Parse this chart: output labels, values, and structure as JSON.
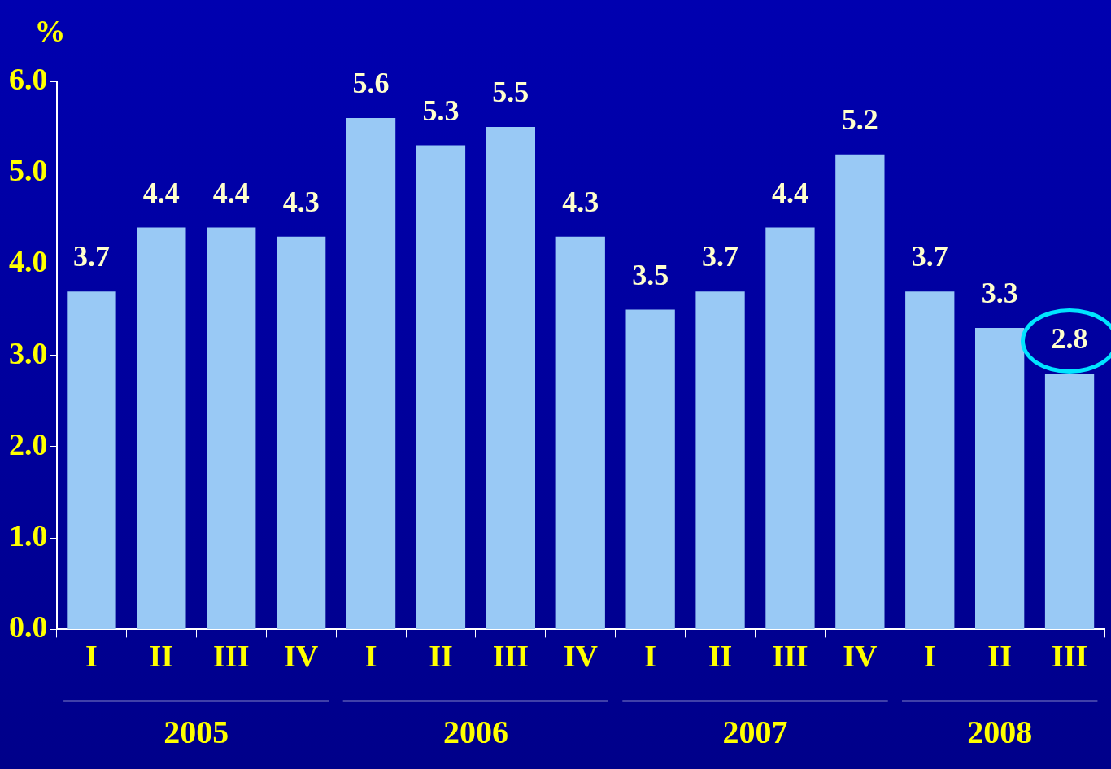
{
  "chart_data": {
    "type": "bar",
    "ylabel": "%",
    "categories": [
      "I",
      "II",
      "III",
      "IV",
      "I",
      "II",
      "III",
      "IV",
      "I",
      "II",
      "III",
      "IV",
      "I",
      "II",
      "III"
    ],
    "values": [
      3.7,
      4.4,
      4.4,
      4.3,
      5.6,
      5.3,
      5.5,
      4.3,
      3.5,
      3.7,
      4.4,
      5.2,
      3.7,
      3.3,
      2.8
    ],
    "color": "#99c9f5",
    "ylim": [
      0,
      6
    ],
    "yticks": [
      {
        "value": 0,
        "label": "0.0"
      },
      {
        "value": 1,
        "label": "1.0"
      },
      {
        "value": 2,
        "label": "2.0"
      },
      {
        "value": 3,
        "label": "3.0"
      },
      {
        "value": 4,
        "label": "4.0"
      },
      {
        "value": 5,
        "label": "5.0"
      },
      {
        "value": 6,
        "label": "6.0"
      }
    ],
    "data_labels": true,
    "grid": false,
    "legend": false,
    "annotations": [
      "2005",
      "2006",
      "2007",
      "2008"
    ]
  }
}
